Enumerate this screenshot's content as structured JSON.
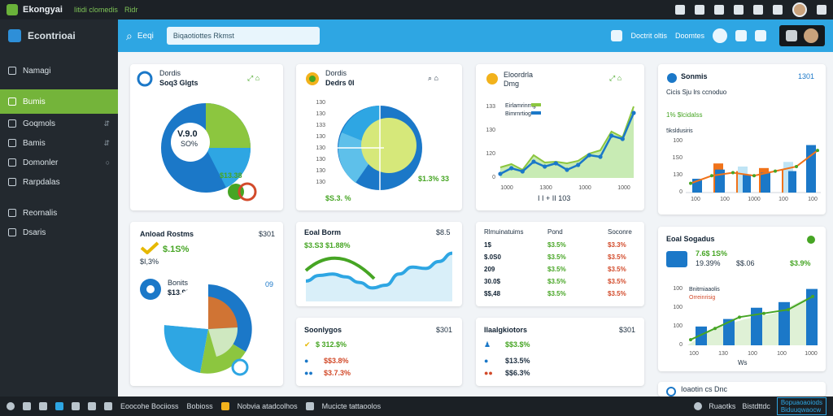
{
  "topbar": {
    "app_name": "Ekongyai",
    "crumb_1": "Iitidi clomedis",
    "crumb_2": "Ridr"
  },
  "sidebar": {
    "brand": "Econtrioai",
    "items": [
      {
        "label": "Namagi",
        "icon": "home-icon"
      },
      {
        "label": "Bumis",
        "icon": "dashboard-icon"
      },
      {
        "label": "Goqmols",
        "icon": "chart-icon"
      },
      {
        "label": "Bamis",
        "icon": "file-icon"
      },
      {
        "label": "Domonler",
        "icon": "users-icon"
      },
      {
        "label": "Rarpdalas",
        "icon": "report-icon"
      },
      {
        "label": "Reornalis",
        "icon": "settings-icon"
      },
      {
        "label": "Dsaris",
        "icon": "tools-icon"
      }
    ]
  },
  "header": {
    "search_label": "Eeqi",
    "search_value": "Biqaotiottes Rkmst",
    "right_1": "Doctrit oltis",
    "right_2": "Doomtes"
  },
  "cards": {
    "c1": {
      "title": "Dordis",
      "subtitle": "Soq3 Glgts",
      "center_value": "V.9.0",
      "center_sub": "SO%",
      "stat": "$13.38",
      "stat2": "3S.3%"
    },
    "c2": {
      "title": "Dordis",
      "subtitle": "Dedrs 0I",
      "stat": "$1.3% 33",
      "stat2": "$S.3. %",
      "yaxis": [
        "130",
        "130",
        "133",
        "130",
        "130",
        "130",
        "130",
        "130"
      ]
    },
    "c3": {
      "title": "Eloordrla",
      "subtitle": "Dmg",
      "legend_1": "Eirlamrinrng",
      "legend_2": "Bimrnrtiog",
      "footer": "I I + II 103",
      "yaxis": [
        "133",
        "130",
        "120",
        "0"
      ],
      "xaxis": [
        "1000",
        "1300",
        "1000",
        "1000"
      ],
      "series": [
        5,
        12,
        8,
        20,
        14,
        18,
        10,
        16,
        28,
        26,
        52,
        48,
        80
      ]
    },
    "c4": {
      "title": "Sonmis",
      "right": "1301",
      "subtitle": "Cicis Sju lrs ccnoduo",
      "legend_1": "1% $lcidalss",
      "legend_2": "5ksldusiris",
      "yaxis": [
        "100",
        "1S0",
        "130",
        "0"
      ],
      "xaxis": [
        "100",
        "100",
        "1000",
        "100",
        "100"
      ],
      "bars": [
        {
          "blue": 18,
          "orange": 0
        },
        {
          "blue": 30,
          "orange": 38
        },
        {
          "blue": 34,
          "orange": 28
        },
        {
          "blue": 26,
          "orange": 32
        },
        {
          "blue": 40,
          "orange": 30
        },
        {
          "blue": 62,
          "orange": 0
        }
      ],
      "line": [
        12,
        22,
        26,
        22,
        28,
        34,
        55
      ]
    },
    "c5": {
      "title": "Anload Rostms",
      "right": "$301",
      "stat_1": "$.1S%",
      "stat_2": "$I,3%",
      "label": "Bonits",
      "value": "$13.9%",
      "badge": "09"
    },
    "c6": {
      "title": "Eoal Borm",
      "right": "$8.5",
      "subtitle": "$3.S3 $1.88%",
      "series": [
        20,
        28,
        30,
        26,
        18,
        10,
        14,
        30,
        40,
        38,
        48,
        60
      ]
    },
    "c7": {
      "headers": [
        "Rlmuinatuims",
        "Pond",
        "Soconre"
      ],
      "rows": [
        [
          "1$",
          "$3.5%",
          "$3.3%"
        ],
        [
          "$.0S0",
          "$3.5%",
          "$3.5%"
        ],
        [
          "209",
          "$3.5%",
          "$3.5%"
        ],
        [
          "30.0$",
          "$3.5%",
          "$3.5%"
        ],
        [
          "$$,48",
          "$3.5%",
          "$3.5%"
        ]
      ]
    },
    "c8": {
      "title": "Eoal Sogadus",
      "stat_1": "7.6$ 1S%",
      "stat_2": "19.39%",
      "stat_3": "$$.06",
      "stat_4": "$3.9%",
      "legend_1": "Bnitmiaaolis",
      "legend_2": "Orreinrisig",
      "yaxis": [
        "100",
        "100",
        "100",
        "0"
      ],
      "xaxis": [
        "100",
        "130",
        "100",
        "100",
        "1000"
      ],
      "footer": "Ws",
      "bars": [
        20,
        28,
        40,
        46,
        60
      ],
      "line": [
        6,
        18,
        30,
        34,
        38,
        52
      ]
    },
    "c9": {
      "title": "Soonlygos",
      "right": "$301",
      "rows": [
        [
          "$ 312.$%",
          ""
        ],
        [
          "$$3.8%",
          ""
        ],
        [
          "$3.7.3%",
          ""
        ]
      ]
    },
    "c10": {
      "title": "Ilaalgkiotors",
      "right": "$301",
      "rows": [
        "$$3.$%",
        "$13.5%",
        "$$6.3%"
      ]
    },
    "c11": {
      "title": "Ioaotin cs Dnc"
    }
  },
  "taskbar": {
    "item_1": "Eoocohe Bociioss",
    "item_2": "Bobioss",
    "item_3": "Nobvia atadcolhos",
    "item_4": "Mucicte tattaoolos",
    "right_1": "Ruaotks",
    "right_2": "Bistdttdc",
    "box_1": "Bopuaoaoiods",
    "box_2": "Biduuqwaocw"
  },
  "colors": {
    "accent_blue": "#2ea6e3",
    "accent_green": "#74b43a",
    "chart_blue": "#1b78c8",
    "chart_green": "#8cc63f",
    "chart_orange": "#f0731a"
  }
}
